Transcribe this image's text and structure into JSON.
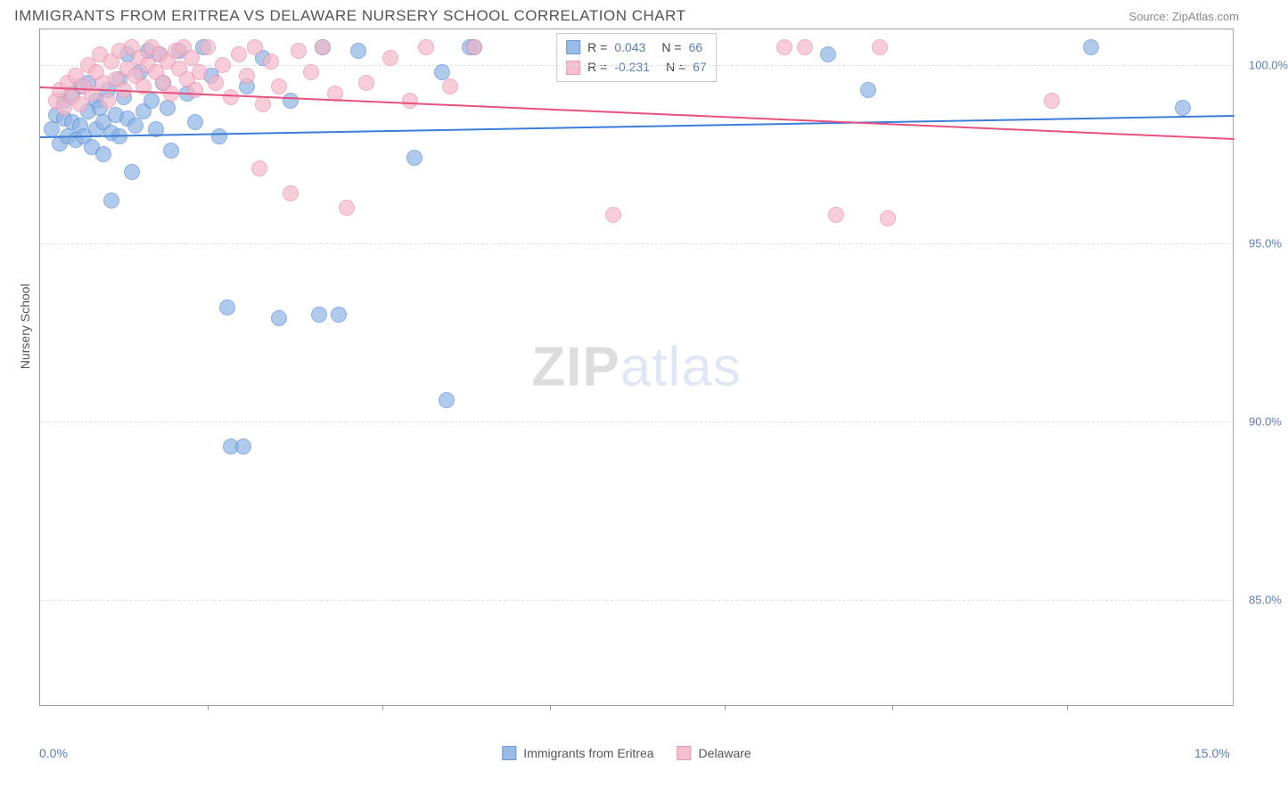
{
  "title": "IMMIGRANTS FROM ERITREA VS DELAWARE NURSERY SCHOOL CORRELATION CHART",
  "source": "Source: ZipAtlas.com",
  "watermark_a": "ZIP",
  "watermark_b": "atlas",
  "y_axis_title": "Nursery School",
  "chart": {
    "type": "scatter-with-trend",
    "xlim": [
      0,
      15
    ],
    "ylim": [
      82,
      101
    ],
    "x_ticks_major_labels": [
      {
        "v": 0.0,
        "label": "0.0%"
      },
      {
        "v": 15.0,
        "label": "15.0%"
      }
    ],
    "x_ticks_minor": [
      2.1,
      4.3,
      6.4,
      8.6,
      10.7,
      12.9
    ],
    "y_ticks": [
      {
        "v": 85.0,
        "label": "85.0%"
      },
      {
        "v": 90.0,
        "label": "90.0%"
      },
      {
        "v": 95.0,
        "label": "95.0%"
      },
      {
        "v": 100.0,
        "label": "100.0%"
      }
    ],
    "grid_color": "#dddddd",
    "background_color": "#ffffff",
    "marker_radius": 9,
    "marker_fill_opacity": 0.35,
    "marker_stroke_width": 1,
    "series": [
      {
        "name": "Immigrants from Eritrea",
        "color_fill": "#8fb4e3",
        "color_stroke": "#5b8fd6",
        "R": "0.043",
        "N": "66",
        "trend": {
          "x0": 0,
          "y0": 98.0,
          "x1": 15,
          "y1": 98.6,
          "color": "#3b7dd8",
          "width": 2
        },
        "points": [
          [
            0.15,
            98.2
          ],
          [
            0.2,
            98.6
          ],
          [
            0.25,
            97.8
          ],
          [
            0.3,
            98.5
          ],
          [
            0.3,
            99.0
          ],
          [
            0.35,
            98.0
          ],
          [
            0.4,
            98.4
          ],
          [
            0.4,
            99.2
          ],
          [
            0.45,
            97.9
          ],
          [
            0.5,
            98.3
          ],
          [
            0.5,
            99.4
          ],
          [
            0.55,
            98.0
          ],
          [
            0.6,
            98.7
          ],
          [
            0.6,
            99.5
          ],
          [
            0.65,
            97.7
          ],
          [
            0.7,
            98.2
          ],
          [
            0.7,
            99.0
          ],
          [
            0.75,
            98.8
          ],
          [
            0.8,
            97.5
          ],
          [
            0.8,
            98.4
          ],
          [
            0.85,
            99.3
          ],
          [
            0.9,
            98.1
          ],
          [
            0.9,
            96.2
          ],
          [
            0.95,
            98.6
          ],
          [
            1.0,
            99.6
          ],
          [
            1.0,
            98.0
          ],
          [
            1.05,
            99.1
          ],
          [
            1.1,
            100.3
          ],
          [
            1.1,
            98.5
          ],
          [
            1.15,
            97.0
          ],
          [
            1.2,
            98.3
          ],
          [
            1.25,
            99.8
          ],
          [
            1.3,
            98.7
          ],
          [
            1.35,
            100.4
          ],
          [
            1.4,
            99.0
          ],
          [
            1.45,
            98.2
          ],
          [
            1.5,
            100.3
          ],
          [
            1.55,
            99.5
          ],
          [
            1.6,
            98.8
          ],
          [
            1.65,
            97.6
          ],
          [
            1.75,
            100.4
          ],
          [
            1.85,
            99.2
          ],
          [
            1.95,
            98.4
          ],
          [
            2.05,
            100.5
          ],
          [
            2.15,
            99.7
          ],
          [
            2.25,
            98.0
          ],
          [
            2.35,
            93.2
          ],
          [
            2.4,
            89.3
          ],
          [
            2.55,
            89.3
          ],
          [
            2.6,
            99.4
          ],
          [
            2.8,
            100.2
          ],
          [
            3.0,
            92.9
          ],
          [
            3.15,
            99.0
          ],
          [
            3.5,
            93.0
          ],
          [
            3.55,
            100.5
          ],
          [
            3.75,
            93.0
          ],
          [
            4.0,
            100.4
          ],
          [
            4.7,
            97.4
          ],
          [
            5.05,
            99.8
          ],
          [
            5.1,
            90.6
          ],
          [
            5.4,
            100.5
          ],
          [
            5.45,
            100.5
          ],
          [
            9.9,
            100.3
          ],
          [
            10.4,
            99.3
          ],
          [
            13.2,
            100.5
          ],
          [
            14.35,
            98.8
          ]
        ]
      },
      {
        "name": "Delaware",
        "color_fill": "#f4b9c9",
        "color_stroke": "#ea8fb0",
        "R": "-0.231",
        "N": "67",
        "trend": {
          "x0": 0,
          "y0": 99.4,
          "x1": 15,
          "y1": 97.95,
          "color": "#e6527e",
          "width": 2
        },
        "points": [
          [
            0.2,
            99.0
          ],
          [
            0.25,
            99.3
          ],
          [
            0.3,
            98.8
          ],
          [
            0.35,
            99.5
          ],
          [
            0.4,
            99.1
          ],
          [
            0.45,
            99.7
          ],
          [
            0.5,
            98.9
          ],
          [
            0.55,
            99.4
          ],
          [
            0.6,
            100.0
          ],
          [
            0.65,
            99.2
          ],
          [
            0.7,
            99.8
          ],
          [
            0.75,
            100.3
          ],
          [
            0.8,
            99.5
          ],
          [
            0.85,
            99.0
          ],
          [
            0.9,
            100.1
          ],
          [
            0.95,
            99.6
          ],
          [
            1.0,
            100.4
          ],
          [
            1.05,
            99.3
          ],
          [
            1.1,
            99.9
          ],
          [
            1.15,
            100.5
          ],
          [
            1.2,
            99.7
          ],
          [
            1.25,
            100.2
          ],
          [
            1.3,
            99.4
          ],
          [
            1.35,
            100.0
          ],
          [
            1.4,
            100.5
          ],
          [
            1.45,
            99.8
          ],
          [
            1.5,
            100.3
          ],
          [
            1.55,
            99.5
          ],
          [
            1.6,
            100.1
          ],
          [
            1.65,
            99.2
          ],
          [
            1.7,
            100.4
          ],
          [
            1.75,
            99.9
          ],
          [
            1.8,
            100.5
          ],
          [
            1.85,
            99.6
          ],
          [
            1.9,
            100.2
          ],
          [
            1.95,
            99.3
          ],
          [
            2.0,
            99.8
          ],
          [
            2.1,
            100.5
          ],
          [
            2.2,
            99.5
          ],
          [
            2.3,
            100.0
          ],
          [
            2.4,
            99.1
          ],
          [
            2.5,
            100.3
          ],
          [
            2.6,
            99.7
          ],
          [
            2.7,
            100.5
          ],
          [
            2.75,
            97.1
          ],
          [
            2.8,
            98.9
          ],
          [
            2.9,
            100.1
          ],
          [
            3.0,
            99.4
          ],
          [
            3.15,
            96.4
          ],
          [
            3.25,
            100.4
          ],
          [
            3.4,
            99.8
          ],
          [
            3.55,
            100.5
          ],
          [
            3.7,
            99.2
          ],
          [
            3.85,
            96.0
          ],
          [
            4.1,
            99.5
          ],
          [
            4.4,
            100.2
          ],
          [
            4.65,
            99.0
          ],
          [
            4.85,
            100.5
          ],
          [
            5.15,
            99.4
          ],
          [
            5.45,
            100.5
          ],
          [
            7.2,
            95.8
          ],
          [
            9.35,
            100.5
          ],
          [
            9.6,
            100.5
          ],
          [
            10.0,
            95.8
          ],
          [
            10.55,
            100.5
          ],
          [
            10.65,
            95.7
          ],
          [
            12.7,
            99.0
          ]
        ]
      }
    ]
  },
  "legend2_series1": "Immigrants from Eritrea",
  "legend2_series2": "Delaware"
}
